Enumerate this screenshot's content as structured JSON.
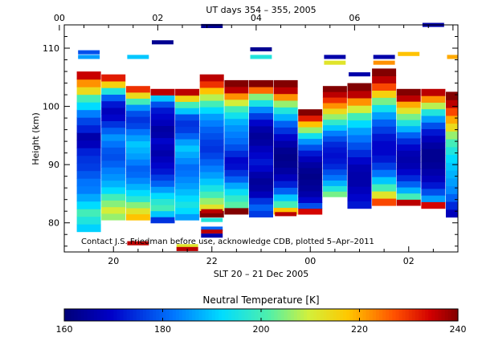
{
  "chart_data": {
    "type": "heatmap",
    "title": "UT days 354 – 355, 2005",
    "xlabel": "SLT 20 – 21 Dec 2005",
    "ylabel": "Height (km)",
    "x_bottom_ticks": [
      "20",
      "22",
      "00",
      "02"
    ],
    "x_top_ticks": [
      "00",
      "02",
      "04",
      "06"
    ],
    "y_ticks": [
      80,
      90,
      100,
      110
    ],
    "ylim": [
      75,
      114
    ],
    "xlim_slt_hours": [
      19.0,
      27.0
    ],
    "annotation": "Contact J.S. Friedman before use, acknowledge CDB, plotted 5–Apr–2011",
    "colorbar": {
      "label": "Neutral Temperature [K]",
      "min": 160,
      "max": 240,
      "ticks": [
        160,
        180,
        200,
        220,
        240
      ]
    },
    "profiles": [
      {
        "slt": 19.5,
        "bottom": 78.5,
        "top": 106,
        "values": [
          191,
          196,
          200,
          192,
          187,
          183,
          182,
          179,
          176,
          175,
          173,
          168,
          166,
          173,
          177,
          183,
          192,
          200,
          214,
          222,
          235
        ]
      },
      {
        "slt": 20.0,
        "bottom": 80.5,
        "top": 105.5,
        "values": [
          206,
          210,
          205,
          200,
          192,
          188,
          185,
          183,
          180,
          178,
          179,
          182,
          185,
          180,
          175,
          170,
          168,
          172,
          180,
          196,
          216,
          232
        ]
      },
      {
        "slt": 20.5,
        "bottom": 80.5,
        "top": 103.5,
        "values": [
          218,
          212,
          205,
          197,
          192,
          188,
          184,
          181,
          180,
          183,
          186,
          188,
          190,
          186,
          182,
          177,
          175,
          178,
          185,
          200,
          214,
          230
        ]
      },
      {
        "slt": 21.0,
        "bottom": 80.0,
        "top": 103,
        "values": [
          175,
          190,
          200,
          197,
          192,
          186,
          180,
          176,
          172,
          170,
          168,
          166,
          168,
          170,
          166,
          165,
          168,
          170,
          172,
          178,
          190,
          236
        ]
      },
      {
        "slt": 21.5,
        "bottom": 80.5,
        "top": 103,
        "values": [
          186,
          192,
          195,
          192,
          189,
          186,
          184,
          182,
          181,
          184,
          187,
          190,
          186,
          180,
          176,
          175,
          178,
          190,
          200,
          215,
          236
        ]
      },
      {
        "slt": 22.0,
        "bottom": 81.0,
        "top": 105.5,
        "values": [
          240,
          212,
          206,
          200,
          195,
          190,
          186,
          183,
          180,
          177,
          175,
          176,
          178,
          180,
          183,
          186,
          192,
          200,
          208,
          218,
          230,
          236
        ]
      },
      {
        "slt": 22.5,
        "bottom": 81.5,
        "top": 104.5,
        "values": [
          240,
          202,
          198,
          193,
          187,
          180,
          175,
          171,
          170,
          174,
          178,
          181,
          183,
          185,
          188,
          194,
          200,
          210,
          222,
          236,
          240
        ]
      },
      {
        "slt": 23.0,
        "bottom": 81.0,
        "top": 104.5,
        "values": [
          176,
          180,
          175,
          168,
          165,
          164,
          166,
          170,
          172,
          170,
          168,
          165,
          164,
          166,
          170,
          176,
          184,
          195,
          205,
          225,
          240
        ]
      },
      {
        "slt": 23.5,
        "bottom": 81.5,
        "top": 104.5,
        "values": [
          218,
          200,
          190,
          180,
          173,
          168,
          165,
          163,
          162,
          163,
          166,
          170,
          175,
          180,
          188,
          196,
          206,
          222,
          236,
          240
        ]
      },
      {
        "slt": 24.0,
        "bottom": 81.5,
        "top": 99.5,
        "values": [
          234,
          178,
          170,
          166,
          164,
          163,
          162,
          163,
          165,
          168,
          172,
          178,
          185,
          194,
          206,
          218,
          232,
          240
        ]
      },
      {
        "slt": 24.5,
        "bottom": 84.5,
        "top": 103.5,
        "values": [
          204,
          196,
          188,
          182,
          178,
          174,
          172,
          171,
          172,
          174,
          178,
          183,
          190,
          198,
          206,
          214,
          222,
          230,
          236,
          240
        ]
      },
      {
        "slt": 25.0,
        "bottom": 82.5,
        "top": 104,
        "values": [
          172,
          170,
          168,
          166,
          166,
          167,
          170,
          174,
          178,
          182,
          186,
          192,
          200,
          210,
          222,
          236,
          240
        ]
      },
      {
        "slt": 25.5,
        "bottom": 83.0,
        "top": 106.5,
        "values": [
          228,
          212,
          200,
          190,
          182,
          176,
          172,
          170,
          170,
          172,
          176,
          180,
          186,
          194,
          204,
          216,
          228,
          236,
          240
        ]
      },
      {
        "slt": 26.0,
        "bottom": 83.0,
        "top": 103,
        "values": [
          236,
          200,
          188,
          180,
          174,
          170,
          167,
          166,
          167,
          170,
          174,
          180,
          188,
          196,
          204,
          212,
          220,
          236,
          240
        ]
      },
      {
        "slt": 26.5,
        "bottom": 82.5,
        "top": 103,
        "values": [
          234,
          186,
          178,
          172,
          168,
          166,
          164,
          163,
          163,
          165,
          168,
          172,
          178,
          186,
          196,
          208,
          222,
          236
        ]
      },
      {
        "slt": 27.0,
        "bottom": 81.0,
        "top": 102.5,
        "values": [
          168,
          174,
          180,
          184,
          186,
          188,
          190,
          192,
          196,
          200,
          206,
          214,
          220,
          228,
          236,
          240
        ]
      }
    ],
    "isolated_blocks": [
      {
        "slt": 19.5,
        "alt": 108.5,
        "value": 186
      },
      {
        "slt": 19.5,
        "alt": 109.3,
        "value": 178
      },
      {
        "slt": 20.5,
        "alt": 108.5,
        "value": 190
      },
      {
        "slt": 21.0,
        "alt": 111.0,
        "value": 163
      },
      {
        "slt": 21.5,
        "alt": 76.0,
        "value": 212
      },
      {
        "slt": 21.5,
        "alt": 75.5,
        "value": 236
      },
      {
        "slt": 22.0,
        "alt": 113.8,
        "value": 163
      },
      {
        "slt": 22.0,
        "alt": 80.5,
        "value": 196
      },
      {
        "slt": 22.0,
        "alt": 79.0,
        "value": 180
      },
      {
        "slt": 22.0,
        "alt": 78.5,
        "value": 236
      },
      {
        "slt": 22.0,
        "alt": 77.8,
        "value": 166
      },
      {
        "slt": 22.0,
        "alt": 82.0,
        "value": 236
      },
      {
        "slt": 23.0,
        "alt": 109.8,
        "value": 163
      },
      {
        "slt": 23.0,
        "alt": 108.5,
        "value": 196
      },
      {
        "slt": 24.5,
        "alt": 108.5,
        "value": 166
      },
      {
        "slt": 24.5,
        "alt": 107.5,
        "value": 212
      },
      {
        "slt": 25.0,
        "alt": 105.5,
        "value": 166
      },
      {
        "slt": 25.5,
        "alt": 107.5,
        "value": 222
      },
      {
        "slt": 25.5,
        "alt": 108.5,
        "value": 166
      },
      {
        "slt": 26.0,
        "alt": 109.0,
        "value": 218
      },
      {
        "slt": 26.5,
        "alt": 114.0,
        "value": 166
      },
      {
        "slt": 27.0,
        "alt": 108.5,
        "value": 220
      },
      {
        "slt": 20.5,
        "alt": 76.5,
        "value": 236
      },
      {
        "slt": 23.5,
        "alt": 81.5,
        "value": 236
      }
    ]
  }
}
